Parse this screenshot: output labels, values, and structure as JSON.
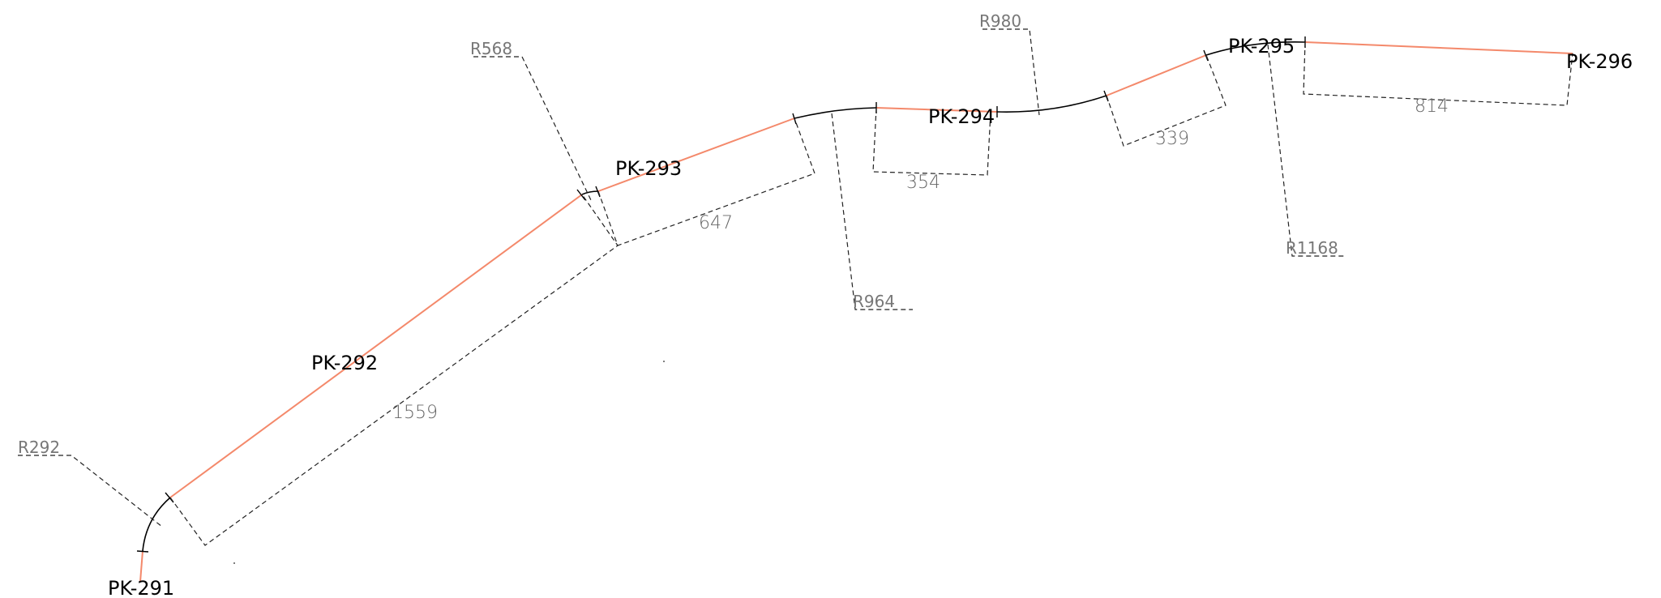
{
  "pickets": [
    {
      "id": "pk291",
      "label": "PK-291"
    },
    {
      "id": "pk292",
      "label": "PK-292"
    },
    {
      "id": "pk293",
      "label": "PK-293"
    },
    {
      "id": "pk294",
      "label": "PK-294"
    },
    {
      "id": "pk295",
      "label": "PK-295"
    },
    {
      "id": "pk296",
      "label": "PK-296"
    }
  ],
  "lengths": [
    {
      "id": "len1559",
      "label": "1559"
    },
    {
      "id": "len647",
      "label": "647"
    },
    {
      "id": "len354",
      "label": "354"
    },
    {
      "id": "len339",
      "label": "339"
    },
    {
      "id": "len814",
      "label": "814"
    }
  ],
  "radii": [
    {
      "id": "r292",
      "label": "R292"
    },
    {
      "id": "r568",
      "label": "R568"
    },
    {
      "id": "r964",
      "label": "R964"
    },
    {
      "id": "r980",
      "label": "R980"
    },
    {
      "id": "r1168",
      "label": "R1168"
    }
  ],
  "colors": {
    "straight": "#f4896b",
    "curve": "#000000",
    "dimension": "#222222",
    "dimension_text": "#666666"
  }
}
